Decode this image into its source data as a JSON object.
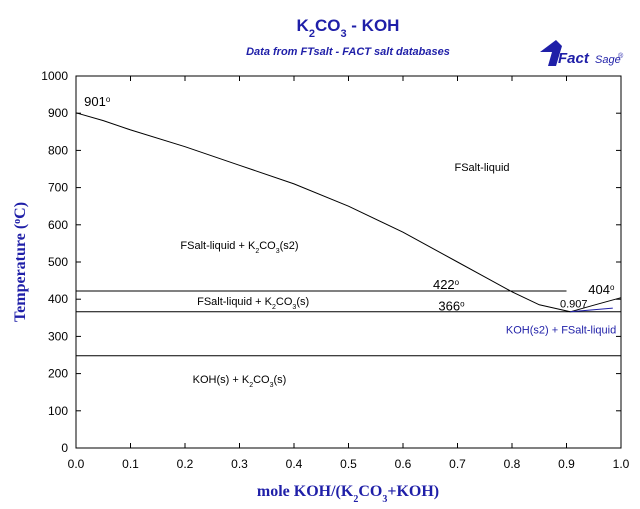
{
  "logo": {
    "brand_bold": "Fact",
    "brand_light": "Sage",
    "mark": "®"
  },
  "chart_data": {
    "type": "line",
    "title_parts": [
      "K",
      "2",
      "CO",
      "3",
      " - KOH"
    ],
    "subtitle": "Data from FTsalt - FACT salt databases",
    "ylabel": "Temperature (°C)",
    "ylabel_parts": [
      "Temperature (",
      "o",
      "C)"
    ],
    "xlabel_parts": [
      "mole KOH/(K",
      "2",
      "CO",
      "3",
      "+KOH)"
    ],
    "xlim": [
      0,
      1
    ],
    "ylim": [
      0,
      1000
    ],
    "xticks": [
      0,
      0.1,
      0.2,
      0.3,
      0.4,
      0.5,
      0.6,
      0.7,
      0.8,
      0.9,
      1.0
    ],
    "xtick_labels": [
      "0.0",
      "0.1",
      "0.2",
      "0.3",
      "0.4",
      "0.5",
      "0.6",
      "0.7",
      "0.8",
      "0.9",
      "1.0"
    ],
    "yticks": [
      0,
      100,
      200,
      300,
      400,
      500,
      600,
      700,
      800,
      900,
      1000
    ],
    "ytick_labels": [
      "0",
      "100",
      "200",
      "300",
      "400",
      "500",
      "600",
      "700",
      "800",
      "900",
      "1000"
    ],
    "grid": false,
    "series": [
      {
        "kind": "liquidus_left",
        "color": "#000000",
        "points": [
          [
            0,
            901
          ],
          [
            0.05,
            880
          ],
          [
            0.1,
            855
          ],
          [
            0.2,
            810
          ],
          [
            0.3,
            760
          ],
          [
            0.4,
            710
          ],
          [
            0.5,
            650
          ],
          [
            0.6,
            580
          ],
          [
            0.7,
            500
          ],
          [
            0.75,
            460
          ],
          [
            0.8,
            420
          ],
          [
            0.85,
            385
          ],
          [
            0.907,
            366
          ]
        ]
      },
      {
        "kind": "liquidus_right",
        "color": "#000000",
        "points": [
          [
            0.907,
            366
          ],
          [
            0.95,
            384
          ],
          [
            1.0,
            404
          ]
        ]
      },
      {
        "kind": "iso_422",
        "color": "#000000",
        "points": [
          [
            0,
            422
          ],
          [
            0.9,
            422
          ]
        ]
      },
      {
        "kind": "iso_366",
        "color": "#000000",
        "points": [
          [
            0,
            366
          ],
          [
            1.0,
            366
          ]
        ]
      },
      {
        "kind": "iso_248",
        "color": "#000000",
        "points": [
          [
            0,
            248
          ],
          [
            1.0,
            248
          ]
        ]
      },
      {
        "kind": "koh_solidus",
        "color": "#1f1fa8",
        "points": [
          [
            0.907,
            366
          ],
          [
            0.985,
            376
          ]
        ]
      }
    ],
    "point_labels": [
      {
        "text": "901",
        "sup": "o",
        "x": 0.015,
        "y": 920
      },
      {
        "text": "422",
        "sup": "o",
        "x": 0.655,
        "y": 428
      },
      {
        "text": "366",
        "sup": "o",
        "x": 0.665,
        "y": 370
      },
      {
        "text": "0.907",
        "sup": "",
        "x": 0.888,
        "y": 378
      },
      {
        "text": "404",
        "sup": "o",
        "x": 0.94,
        "y": 414
      }
    ],
    "region_labels": [
      {
        "parts": [
          "FSalt-liquid"
        ],
        "x": 0.745,
        "y": 745,
        "color": "black"
      },
      {
        "parts": [
          "FSalt-liquid + K",
          "2",
          "CO",
          "3",
          "(s2)"
        ],
        "x": 0.3,
        "y": 535,
        "color": "black"
      },
      {
        "parts": [
          "FSalt-liquid + K",
          "2",
          "CO",
          "3",
          "(s)"
        ],
        "x": 0.325,
        "y": 385,
        "color": "black"
      },
      {
        "parts": [
          "KOH(s2) + FSalt-liquid"
        ],
        "x": 0.89,
        "y": 308,
        "color": "blue"
      },
      {
        "parts": [
          "KOH(s) + K",
          "2",
          "CO",
          "3",
          "(s)"
        ],
        "x": 0.3,
        "y": 175,
        "color": "black"
      }
    ]
  }
}
